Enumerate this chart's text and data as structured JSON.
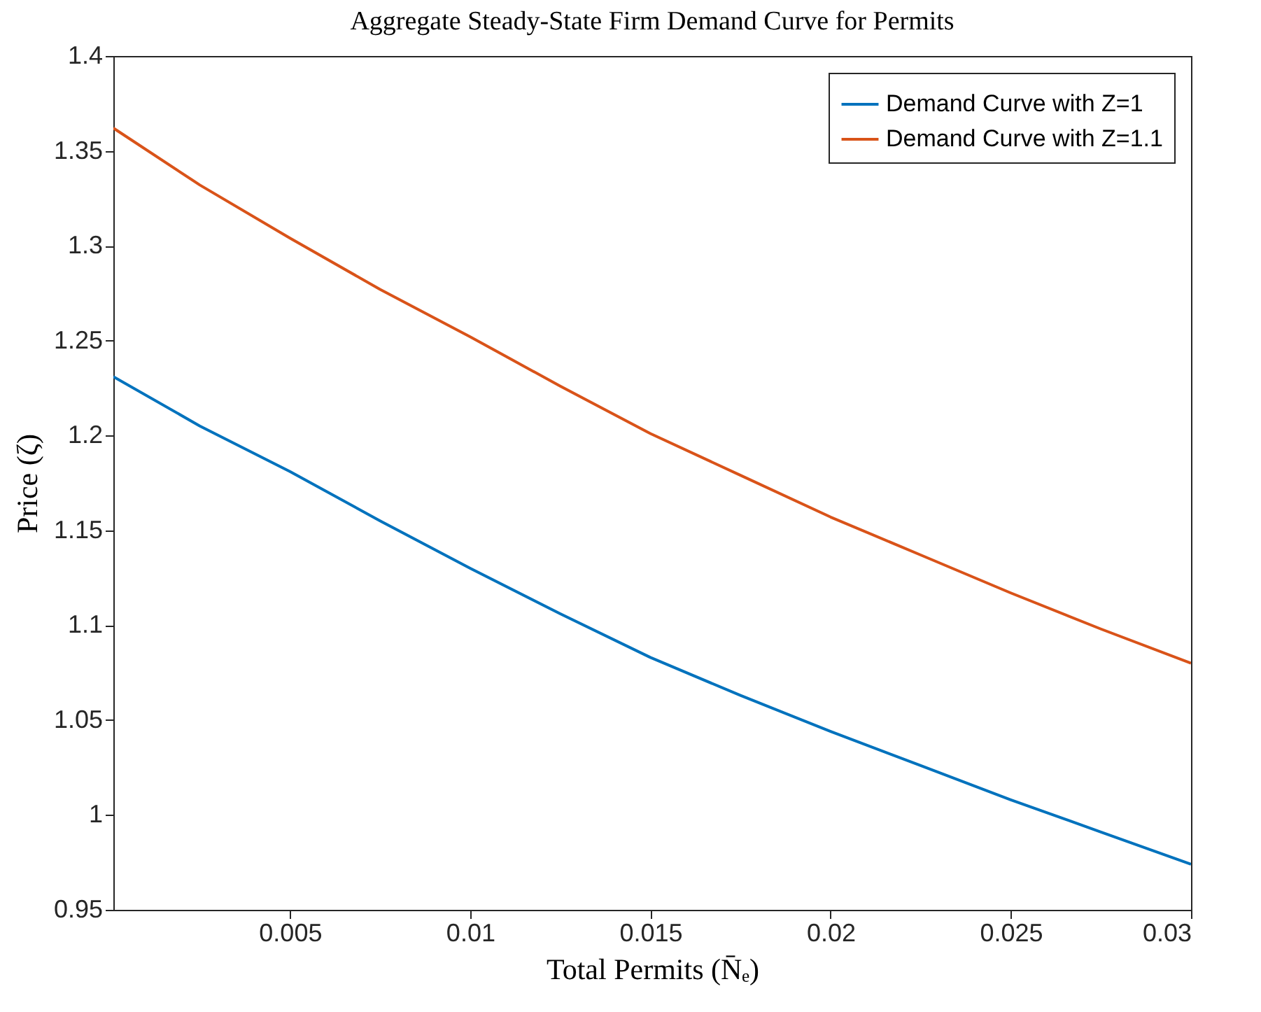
{
  "chart_data": {
    "type": "line",
    "title": "Aggregate Steady-State Firm Demand Curve for Permits",
    "xlabel": "Total Permits (N̄ₑ)",
    "ylabel": "Price (ζ)",
    "x": [
      0.0001,
      0.0025,
      0.005,
      0.0075,
      0.01,
      0.0125,
      0.015,
      0.0175,
      0.02,
      0.0225,
      0.025,
      0.0275,
      0.03
    ],
    "series": [
      {
        "name": "Demand Curve with Z=1",
        "color": "#0072bd",
        "values": [
          1.231,
          1.205,
          1.181,
          1.155,
          1.13,
          1.106,
          1.083,
          1.063,
          1.044,
          1.026,
          1.008,
          0.991,
          0.974
        ]
      },
      {
        "name": "Demand Curve with Z=1.1",
        "color": "#d95319",
        "values": [
          1.362,
          1.332,
          1.304,
          1.277,
          1.252,
          1.226,
          1.201,
          1.179,
          1.157,
          1.137,
          1.117,
          1.098,
          1.08
        ]
      }
    ],
    "xlim": [
      0.0001,
      0.03
    ],
    "xticks": [
      0.005,
      0.01,
      0.015,
      0.02,
      0.025,
      0.03
    ],
    "ylim": [
      0.95,
      1.4
    ],
    "yticks": [
      0.95,
      1,
      1.05,
      1.1,
      1.15,
      1.2,
      1.25,
      1.3,
      1.35,
      1.4
    ],
    "grid": false,
    "legend": "top right",
    "marker": "none",
    "line_style": "solid"
  }
}
